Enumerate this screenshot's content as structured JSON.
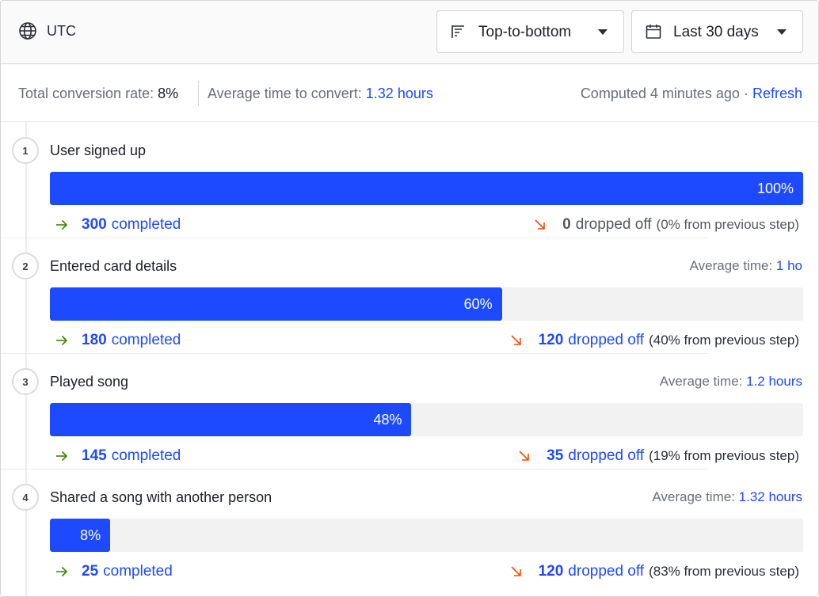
{
  "toolbar": {
    "timezone": "UTC",
    "layout_select": {
      "value": "Top-to-bottom",
      "icon": "funnel-sort-icon"
    },
    "date_select": {
      "value": "Last 30 days",
      "icon": "calendar-icon"
    }
  },
  "summary": {
    "conversion_label": "Total conversion rate:",
    "conversion_value": "8%",
    "avg_time_label": "Average time to convert:",
    "avg_time_value": "1.32 hours",
    "computed": "Computed 4 minutes ago",
    "separator": "·",
    "refresh": "Refresh"
  },
  "steps": [
    {
      "number": "1",
      "title": "User signed up",
      "avg_label": "",
      "avg_value": "",
      "percent_label": "100%",
      "fill_fraction": 1.0,
      "completed_count": "300",
      "completed_label": "completed",
      "dropped_count": "0",
      "dropped_label": "dropped off",
      "dropped_pct": "(0% from previous step)"
    },
    {
      "number": "2",
      "title": "Entered card details",
      "avg_label": "Average time:",
      "avg_value": "1 ho",
      "percent_label": "60%",
      "fill_fraction": 0.6,
      "completed_count": "180",
      "completed_label": "completed",
      "dropped_count": "120",
      "dropped_label": "dropped off",
      "dropped_pct": "(40% from previous step)"
    },
    {
      "number": "3",
      "title": "Played song",
      "avg_label": "Average time:",
      "avg_value": "1.2 hours",
      "percent_label": "48%",
      "fill_fraction": 0.48,
      "completed_count": "145",
      "completed_label": "completed",
      "dropped_count": "35",
      "dropped_label": "dropped off",
      "dropped_pct": "(19% from previous step)"
    },
    {
      "number": "4",
      "title": "Shared a song with another person",
      "avg_label": "Average time:",
      "avg_value": "1.32 hours",
      "percent_label": "8%",
      "fill_fraction": 0.08,
      "completed_count": "25",
      "completed_label": "completed",
      "dropped_count": "120",
      "dropped_label": "dropped off",
      "dropped_pct": "(83% from previous step)"
    }
  ],
  "colors": {
    "accent": "#1d4aff",
    "completed_arrow": "#388600",
    "dropped_arrow": "#f54e00"
  }
}
